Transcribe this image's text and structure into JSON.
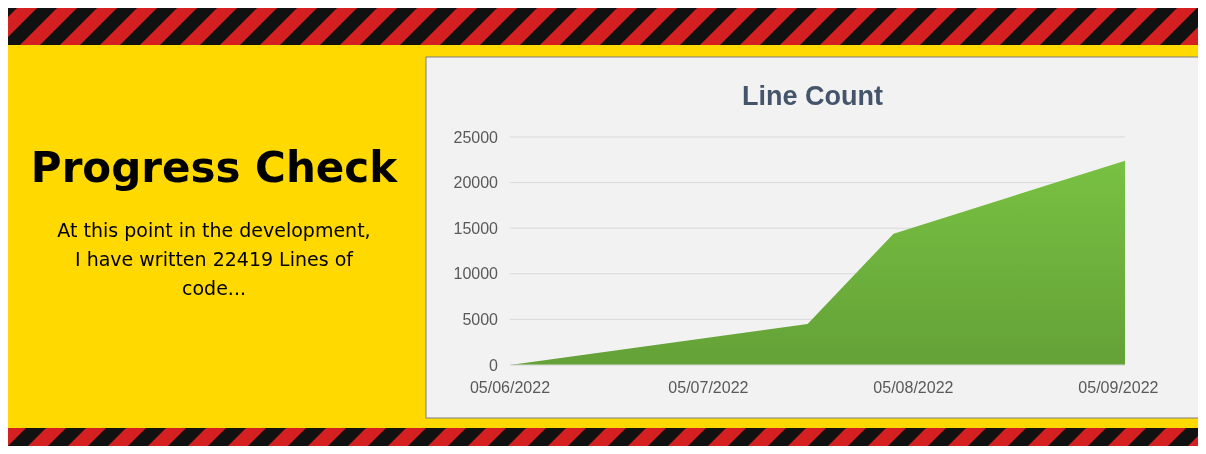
{
  "chart_data": {
    "type": "area",
    "title": "Line Count",
    "annotations": [
      "Progress Check",
      "At this point in the development, I have written 22419 Lines of code..."
    ],
    "x": [
      "2022-06-05",
      "2022-07-20",
      "2022-08-02",
      "2022-09-06"
    ],
    "series": [
      {
        "color": "#6aaa3a",
        "values": [
          0,
          4500,
          14400,
          22400
        ]
      }
    ],
    "xlim": [
      "2022-06-05",
      "2022-09-06"
    ],
    "xticks": [
      {
        "value": "2022-06-05",
        "label": "05/06/2022"
      },
      {
        "value": "2022-07-05",
        "label": "05/07/2022"
      },
      {
        "value": "2022-08-05",
        "label": "05/08/2022"
      },
      {
        "value": "2022-09-05",
        "label": "05/09/2022"
      }
    ],
    "ylim": [
      0,
      25000
    ],
    "yticks": [
      0,
      5000,
      10000,
      15000,
      20000,
      25000
    ],
    "grid": "y"
  }
}
